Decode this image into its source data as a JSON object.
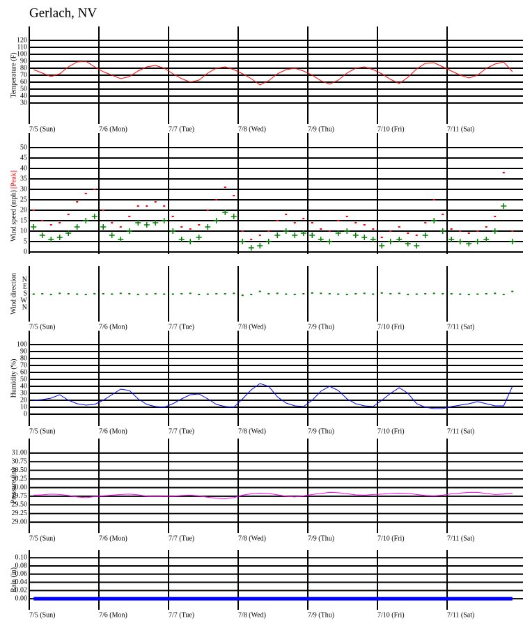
{
  "title": "Gerlach, NV",
  "chart_data": [
    {
      "type": "line",
      "ylabel": "Temperature (F)",
      "categories": [
        "7/5 (Sun)",
        "7/6 (Mon)",
        "7/7 (Tue)",
        "7/8 (Wed)",
        "7/9 (Thu)",
        "7/10 (Fri)",
        "7/11 (Sat)"
      ],
      "series": [
        {
          "color": "#ff0000",
          "values": [
            [
              78,
              73,
              68,
              72,
              82,
              89,
              90,
              82
            ],
            [
              75,
              70,
              65,
              68,
              76,
              82,
              84,
              80
            ],
            [
              72,
              65,
              60,
              63,
              73,
              80,
              82,
              78
            ],
            [
              72,
              65,
              56,
              62,
              72,
              78,
              80,
              76
            ],
            [
              70,
              62,
              57,
              63,
              73,
              80,
              82,
              78
            ],
            [
              72,
              64,
              58,
              67,
              79,
              87,
              88,
              82
            ],
            [
              76,
              70,
              66,
              70,
              80,
              86,
              89,
              75
            ]
          ]
        }
      ],
      "ylim": [
        0,
        140
      ],
      "yticks": [
        30,
        40,
        50,
        60,
        70,
        80,
        90,
        100,
        110,
        120
      ],
      "grid": true
    },
    {
      "type": "scatter",
      "ylabel": "Wind speed (mph)",
      "series": [
        {
          "color": "#008000",
          "marker": "plus",
          "values": [
            [
              12,
              8,
              6,
              7,
              9,
              12,
              15,
              17
            ],
            [
              12,
              8,
              6,
              10,
              14,
              13,
              14,
              15
            ],
            [
              10,
              6,
              5,
              7,
              12,
              15,
              19,
              17
            ],
            [
              5,
              2,
              3,
              5,
              8,
              10,
              8,
              9
            ],
            [
              8,
              6,
              5,
              9,
              10,
              8,
              7,
              6
            ],
            [
              3,
              5,
              6,
              4,
              3,
              8,
              15,
              10
            ],
            [
              6,
              5,
              4,
              5,
              6,
              10,
              22,
              5
            ]
          ]
        },
        {
          "name": "[Peak]",
          "color": "#ff0000",
          "marker": "dot",
          "values": [
            [
              20,
              15,
              13,
              14,
              18,
              24,
              28,
              30
            ],
            [
              20,
              14,
              12,
              17,
              22,
              22,
              24,
              22
            ],
            [
              17,
              12,
              11,
              13,
              20,
              25,
              31,
              27
            ],
            [
              10,
              6,
              8,
              10,
              15,
              18,
              14,
              16
            ],
            [
              14,
              11,
              10,
              15,
              17,
              14,
              13,
              11
            ],
            [
              7,
              10,
              12,
              9,
              8,
              14,
              25,
              18
            ],
            [
              11,
              10,
              9,
              10,
              12,
              17,
              38,
              10
            ]
          ]
        }
      ],
      "ylim": [
        -1,
        57
      ],
      "yticks": [
        0,
        5,
        10,
        15,
        20,
        25,
        30,
        35,
        40,
        45,
        50
      ],
      "grid": true
    },
    {
      "type": "scatter",
      "ylabel": "Wind direction",
      "categories": [
        "7/5 (Sun)",
        "7/6 (Mon)",
        "7/7 (Tue)",
        "7/8 (Wed)",
        "7/9 (Thu)",
        "7/10 (Fri)",
        "7/11 (Sat)"
      ],
      "series": [
        {
          "color": "#008000",
          "marker": "dot",
          "values": [
            [
              185,
              180,
              190,
              175,
              180,
              185,
              190,
              180
            ],
            [
              180,
              185,
              175,
              180,
              190,
              185,
              180,
              185
            ],
            [
              185,
              180,
              175,
              190,
              185,
              180,
              180,
              175
            ],
            [
              200,
              190,
              150,
              180,
              175,
              185,
              190,
              180
            ],
            [
              170,
              175,
              180,
              185,
              190,
              180,
              175,
              185
            ],
            [
              170,
              180,
              175,
              190,
              185,
              180,
              175,
              180
            ],
            [
              180,
              185,
              190,
              185,
              180,
              175,
              190,
              150
            ]
          ]
        }
      ],
      "ylim": [
        -180,
        540
      ],
      "y_inverted": true,
      "yticks": [
        {
          "value": 0,
          "label": "N"
        },
        {
          "value": 90,
          "label": "E"
        },
        {
          "value": 180,
          "label": "S"
        },
        {
          "value": 270,
          "label": "W"
        },
        {
          "value": 360,
          "label": "N"
        }
      ],
      "grid": false
    },
    {
      "type": "line",
      "ylabel": "Humidity (%)",
      "categories": [
        "7/5 (Sun)",
        "7/6 (Mon)",
        "7/7 (Tue)",
        "7/8 (Wed)",
        "7/9 (Thu)",
        "7/10 (Fri)",
        "7/11 (Sat)"
      ],
      "series": [
        {
          "color": "#0000ff",
          "values": [
            [
              20,
              21,
              23,
              28,
              20,
              15,
              13,
              14
            ],
            [
              20,
              28,
              36,
              34,
              22,
              14,
              11,
              10
            ],
            [
              15,
              22,
              28,
              29,
              22,
              14,
              11,
              10
            ],
            [
              22,
              35,
              44,
              40,
              25,
              16,
              12,
              11
            ],
            [
              20,
              33,
              40,
              34,
              22,
              15,
              12,
              11
            ],
            [
              20,
              30,
              38,
              30,
              15,
              10,
              8,
              8
            ],
            [
              11,
              13,
              15,
              18,
              15,
              12,
              12,
              40
            ]
          ]
        }
      ],
      "ylim": [
        -17,
        120
      ],
      "yticks": [
        0,
        10,
        20,
        30,
        40,
        50,
        60,
        70,
        80,
        90,
        100
      ],
      "grid": true
    },
    {
      "type": "line",
      "ylabel": "Pressure (in)",
      "categories": [
        "7/5 (Sun)",
        "7/6 (Mon)",
        "7/7 (Tue)",
        "7/8 (Wed)",
        "7/9 (Thu)",
        "7/10 (Fri)",
        "7/11 (Sat)"
      ],
      "series": [
        {
          "color": "#ff00ff",
          "values": [
            [
              29.78,
              29.79,
              29.81,
              29.8,
              29.77,
              29.73,
              29.71,
              29.74
            ],
            [
              29.76,
              29.78,
              29.8,
              29.81,
              29.79,
              29.75,
              29.74,
              29.75
            ],
            [
              29.75,
              29.77,
              29.78,
              29.76,
              29.72,
              29.69,
              29.68,
              29.71
            ],
            [
              29.78,
              29.82,
              29.84,
              29.83,
              29.79,
              29.75,
              29.73,
              29.76
            ],
            [
              29.8,
              29.83,
              29.86,
              29.85,
              29.82,
              29.79,
              29.78,
              29.8
            ],
            [
              29.81,
              29.83,
              29.84,
              29.83,
              29.8,
              29.77,
              29.76,
              29.78
            ],
            [
              29.82,
              29.84,
              29.86,
              29.86,
              29.83,
              29.8,
              29.81,
              29.84
            ]
          ]
        }
      ],
      "ylim": [
        28.68,
        31.42
      ],
      "yticks": [
        {
          "value": 29,
          "label": "29.00"
        },
        29.25,
        {
          "value": 29.5,
          "label": "29.50"
        },
        29.75,
        {
          "value": 30,
          "label": "30.00"
        },
        30.25,
        {
          "value": 30.5,
          "label": "30.50"
        },
        30.75,
        {
          "value": 31,
          "label": "31.00"
        }
      ],
      "grid": true
    },
    {
      "type": "line",
      "ylabel": "Rain (in)",
      "line_width": 5,
      "categories": [
        "7/5 (Sun)",
        "7/6 (Mon)",
        "7/7 (Tue)",
        "7/8 (Wed)",
        "7/9 (Thu)",
        "7/10 (Fri)",
        "7/11 (Sat)"
      ],
      "series": [
        {
          "color": "#0000ff",
          "values": [
            [
              0,
              0,
              0,
              0,
              0,
              0,
              0,
              0
            ],
            [
              0,
              0,
              0,
              0,
              0,
              0,
              0,
              0
            ],
            [
              0,
              0,
              0,
              0,
              0,
              0,
              0,
              0
            ],
            [
              0,
              0,
              0,
              0,
              0,
              0,
              0,
              0
            ],
            [
              0,
              0,
              0,
              0,
              0,
              0,
              0,
              0
            ],
            [
              0,
              0,
              0,
              0,
              0,
              0,
              0,
              0
            ],
            [
              0,
              0,
              0,
              0,
              0,
              0,
              0,
              0
            ]
          ]
        }
      ],
      "ylim": [
        -0.027,
        0.119
      ],
      "yticks": [
        {
          "value": 0,
          "label": "0.00"
        },
        0.02,
        0.04,
        0.06,
        0.08,
        {
          "value": 0.1,
          "label": "0.10"
        }
      ],
      "grid": true
    }
  ]
}
